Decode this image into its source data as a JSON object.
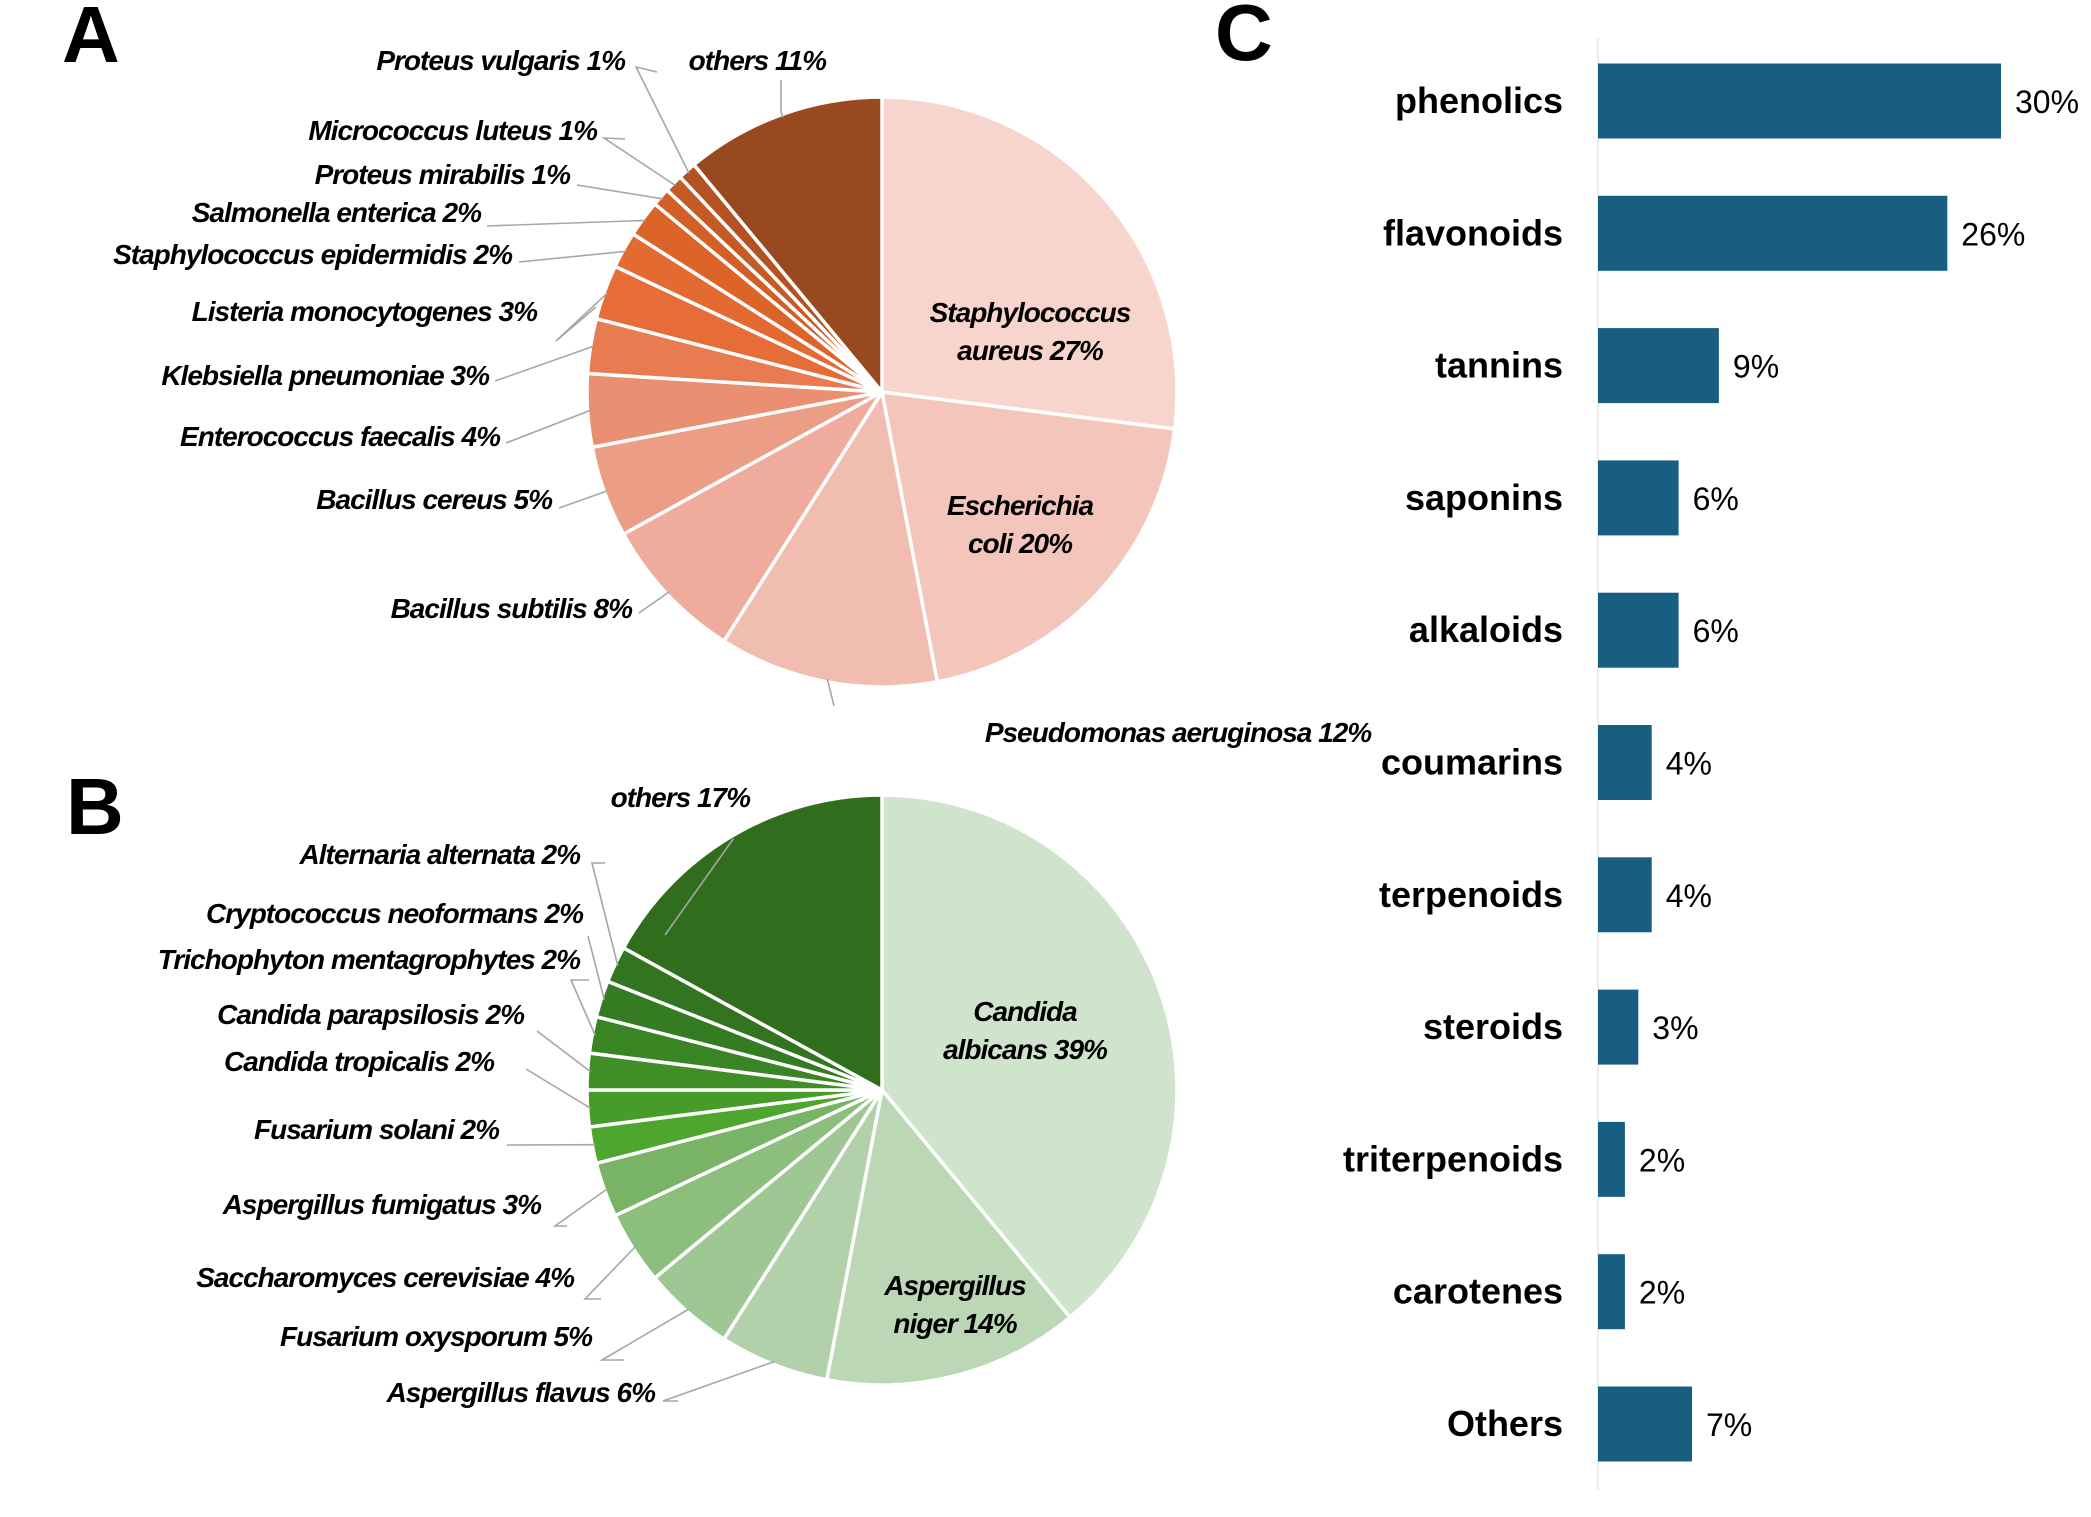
{
  "panels": {
    "a": "A",
    "b": "B",
    "c": "C"
  },
  "chart_data": [
    {
      "type": "pie",
      "panel": "A",
      "slices": [
        {
          "label": "Staphylococcus aureus 27%",
          "lines": [
            "Staphylococcus",
            "aureus 27%"
          ],
          "value": 27,
          "color": "#f7d5cc"
        },
        {
          "label": "Escherichia coli 20%",
          "lines": [
            "Escherichia",
            "coli 20%"
          ],
          "value": 20,
          "color": "#f4c5ba"
        },
        {
          "label": "Pseudomonas aeruginosa 12%",
          "value": 12,
          "color": "#f2bdb1"
        },
        {
          "label": "Bacillus subtilis 8%",
          "value": 8,
          "color": "#efac9c"
        },
        {
          "label": "Bacillus cereus 5%",
          "value": 5,
          "color": "#ec9d85"
        },
        {
          "label": "Enterococcus faecalis 4%",
          "value": 4,
          "color": "#ea8f72"
        },
        {
          "label": "Klebsiella pneumoniae 3%",
          "value": 3,
          "color": "#e97b50"
        },
        {
          "label": "Listeria monocytogenes 3%",
          "value": 3,
          "color": "#e76d38"
        },
        {
          "label": "Staphylococcus epidermidis 2%",
          "value": 2,
          "color": "#e36a30"
        },
        {
          "label": "Salmonella enterica 2%",
          "value": 2,
          "color": "#dd6429"
        },
        {
          "label": "Proteus mirabilis 1%",
          "value": 1,
          "color": "#d45f26"
        },
        {
          "label": "Micrococcus luteus 1%",
          "value": 1,
          "color": "#c65a24"
        },
        {
          "label": "Proteus vulgaris 1%",
          "value": 1,
          "color": "#b45222"
        },
        {
          "label": "others 11%",
          "value": 11,
          "color": "#98491f"
        }
      ]
    },
    {
      "type": "pie",
      "panel": "B",
      "slices": [
        {
          "label": "Candida albicans 39%",
          "lines": [
            "Candida",
            "albicans 39%"
          ],
          "value": 39,
          "color": "#d0e3cc"
        },
        {
          "label": "Aspergillus niger 14%",
          "lines": [
            "Aspergillus",
            "niger 14%"
          ],
          "value": 14,
          "color": "#bcd7b5"
        },
        {
          "label": "Aspergillus flavus 6%",
          "value": 6,
          "color": "#b2d0aa"
        },
        {
          "label": "Fusarium oxysporum 5%",
          "value": 5,
          "color": "#9fc793"
        },
        {
          "label": "Saccharomyces cerevisiae 4%",
          "value": 4,
          "color": "#8cbe7e"
        },
        {
          "label": "Aspergillus fumigatus 3%",
          "value": 3,
          "color": "#79b366"
        },
        {
          "label": "Fusarium solani 2%",
          "value": 2,
          "color": "#4ea62e"
        },
        {
          "label": "Candida tropicalis 2%",
          "value": 2,
          "color": "#479b29"
        },
        {
          "label": "Candida parapsilosis 2%",
          "value": 2,
          "color": "#408f26"
        },
        {
          "label": "Trichophyton mentagrophytes 2%",
          "value": 2,
          "color": "#3a8523"
        },
        {
          "label": "Cryptococcus neoformans 2%",
          "value": 2,
          "color": "#357b21"
        },
        {
          "label": "Alternaria alternata 2%",
          "value": 2,
          "color": "#32741f"
        },
        {
          "label": "others 17%",
          "value": 17,
          "color": "#306e1e"
        }
      ]
    },
    {
      "type": "bar",
      "orientation": "horizontal",
      "panel": "C",
      "categories": [
        "phenolics",
        "flavonoids",
        "tannins",
        "saponins",
        "alkaloids",
        "coumarins",
        "terpenoids",
        "steroids",
        "triterpenoids",
        "carotenes",
        "Others"
      ],
      "values": [
        30,
        26,
        9,
        6,
        6,
        4,
        4,
        3,
        2,
        2,
        7
      ],
      "value_labels": [
        "30%",
        "26%",
        "9%",
        "6%",
        "6%",
        "4%",
        "4%",
        "3%",
        "2%",
        "2%",
        "7%"
      ],
      "color": "#175e80",
      "grid": false
    }
  ]
}
